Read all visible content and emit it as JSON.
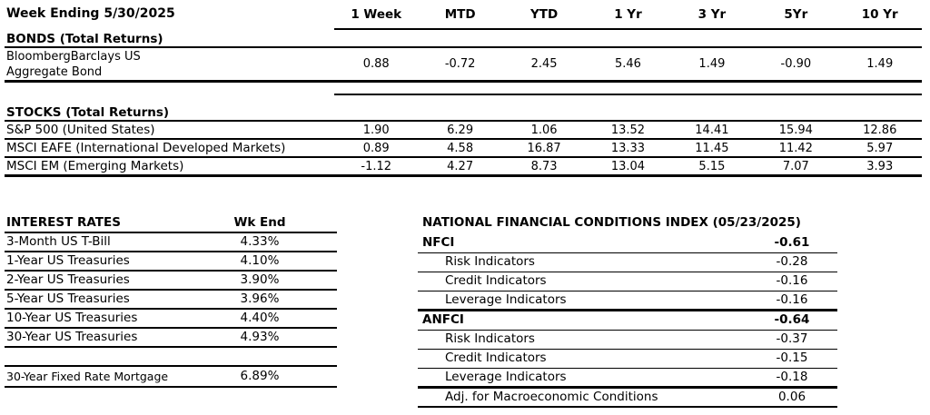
{
  "returns": {
    "week_ending": "Week Ending 5/30/2025",
    "columns": [
      "1 Week",
      "MTD",
      "YTD",
      "1 Yr",
      "3 Yr",
      "5Yr",
      "10 Yr"
    ],
    "bonds_header": "BONDS (Total Returns)",
    "bonds_row": {
      "name_line1": "BloombergBarclays US",
      "name_line2": "Aggregate Bond",
      "values": [
        "0.88",
        "-0.72",
        "2.45",
        "5.46",
        "1.49",
        "-0.90",
        "1.49"
      ]
    },
    "stocks_header": "STOCKS (Total Returns)",
    "stocks_rows": [
      {
        "name": "S&P 500 (United States)",
        "values": [
          "1.90",
          "6.29",
          "1.06",
          "13.52",
          "14.41",
          "15.94",
          "12.86"
        ]
      },
      {
        "name": "MSCI EAFE (International Developed Markets)",
        "values": [
          "0.89",
          "4.58",
          "16.87",
          "13.33",
          "11.45",
          "11.42",
          "5.97"
        ]
      },
      {
        "name": "MSCI EM (Emerging Markets)",
        "values": [
          "-1.12",
          "4.27",
          "8.73",
          "13.04",
          "5.15",
          "7.07",
          "3.93"
        ]
      }
    ]
  },
  "interest_rates": {
    "title": "INTEREST RATES",
    "value_header": "Wk End",
    "rows": [
      {
        "label": "3-Month US T-Bill",
        "value": "4.33%"
      },
      {
        "label": "1-Year US Treasuries",
        "value": "4.10%"
      },
      {
        "label": "2-Year US Treasuries",
        "value": "3.90%"
      },
      {
        "label": "5-Year US Treasuries",
        "value": "3.96%"
      },
      {
        "label": "10-Year US Treasuries",
        "value": "4.40%"
      },
      {
        "label": "30-Year US Treasuries",
        "value": "4.93%"
      }
    ],
    "mortgage": {
      "label": "30-Year Fixed Rate Mortgage",
      "value": "6.89%"
    }
  },
  "nfci": {
    "title": "NATIONAL FINANCIAL CONDITIONS INDEX (05/23/2025)",
    "rows": [
      {
        "label": "NFCI",
        "value": "-0.61"
      },
      {
        "label": "Risk Indicators",
        "value": "-0.28"
      },
      {
        "label": "Credit Indicators",
        "value": "-0.16"
      },
      {
        "label": "Leverage Indicators",
        "value": "-0.16"
      },
      {
        "label": "ANFCI",
        "value": "-0.64"
      },
      {
        "label": "Risk Indicators",
        "value": "-0.37"
      },
      {
        "label": "Credit Indicators",
        "value": "-0.15"
      },
      {
        "label": "Leverage Indicators",
        "value": "-0.18"
      },
      {
        "label": "Adj. for Macroeconomic Conditions",
        "value": "0.06"
      }
    ]
  }
}
